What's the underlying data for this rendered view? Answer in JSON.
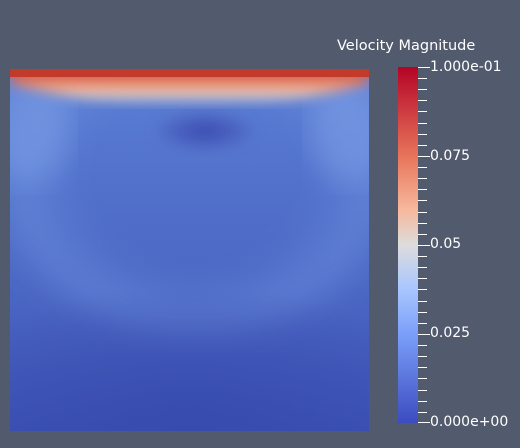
{
  "legend": {
    "title": "Velocity Magnitude",
    "labels": {
      "max": "1.000e-01",
      "q075": "0.075",
      "q050": "0.05",
      "q025": "0.025",
      "min": "0.000e+00"
    },
    "colormap": "Cool to Warm",
    "range": [
      0,
      0.1
    ]
  },
  "colors": {
    "background": "#525a6d",
    "low": "#3b4cc0",
    "mid": "#dddcdc",
    "high": "#b40426"
  }
}
